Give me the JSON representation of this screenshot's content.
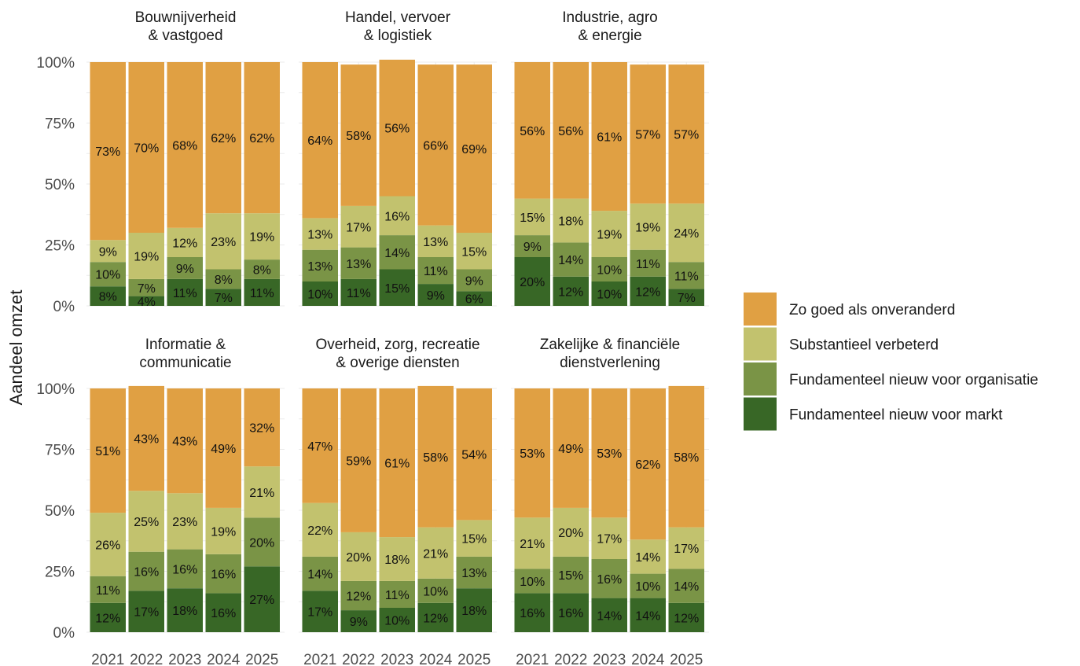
{
  "chart_data": {
    "type": "bar",
    "stacked": true,
    "ylabel": "Aandeel omzet",
    "ylim": [
      0,
      1
    ],
    "y_ticks": [
      "0%",
      "25%",
      "50%",
      "75%",
      "100%"
    ],
    "categories": [
      "2021",
      "2022",
      "2023",
      "2024",
      "2025"
    ],
    "legend_position": "right",
    "series": [
      {
        "name": "Fundamenteel nieuw voor markt",
        "color": "#386726"
      },
      {
        "name": "Fundamenteel nieuw voor organisatie",
        "color": "#7a9446"
      },
      {
        "name": "Substantieel verbeterd",
        "color": "#c2c26e"
      },
      {
        "name": "Zo goed als onveranderd",
        "color": "#e0a043"
      }
    ],
    "legend_order": [
      3,
      2,
      1,
      0
    ],
    "facets": [
      {
        "title": [
          "Bouwnijverheid",
          "& vastgoed"
        ],
        "values": [
          [
            8,
            10,
            9,
            73
          ],
          [
            4,
            7,
            19,
            70
          ],
          [
            11,
            9,
            12,
            68
          ],
          [
            7,
            8,
            23,
            62
          ],
          [
            11,
            8,
            19,
            62
          ]
        ]
      },
      {
        "title": [
          "Handel, vervoer",
          "& logistiek"
        ],
        "values": [
          [
            10,
            13,
            13,
            64
          ],
          [
            11,
            13,
            17,
            58
          ],
          [
            15,
            14,
            16,
            56
          ],
          [
            9,
            11,
            13,
            66
          ],
          [
            6,
            9,
            15,
            69
          ]
        ]
      },
      {
        "title": [
          "Industrie, agro",
          "& energie"
        ],
        "values": [
          [
            20,
            9,
            15,
            56
          ],
          [
            12,
            14,
            18,
            56
          ],
          [
            10,
            10,
            19,
            61
          ],
          [
            12,
            11,
            19,
            57
          ],
          [
            7,
            11,
            24,
            57
          ]
        ]
      },
      {
        "title": [
          "Informatie &",
          "communicatie"
        ],
        "values": [
          [
            12,
            11,
            26,
            51
          ],
          [
            17,
            16,
            25,
            43
          ],
          [
            18,
            16,
            23,
            43
          ],
          [
            16,
            16,
            19,
            49
          ],
          [
            27,
            20,
            21,
            32
          ]
        ]
      },
      {
        "title": [
          "Overheid, zorg, recreatie",
          "& overige diensten"
        ],
        "values": [
          [
            17,
            14,
            22,
            47
          ],
          [
            9,
            12,
            20,
            59
          ],
          [
            10,
            11,
            18,
            61
          ],
          [
            12,
            10,
            21,
            58
          ],
          [
            18,
            13,
            15,
            54
          ]
        ]
      },
      {
        "title": [
          "Zakelijke & financiële",
          "dienstverlening"
        ],
        "values": [
          [
            16,
            10,
            21,
            53
          ],
          [
            16,
            15,
            20,
            49
          ],
          [
            14,
            16,
            17,
            53
          ],
          [
            14,
            10,
            14,
            62
          ],
          [
            12,
            14,
            17,
            58
          ]
        ]
      }
    ]
  }
}
